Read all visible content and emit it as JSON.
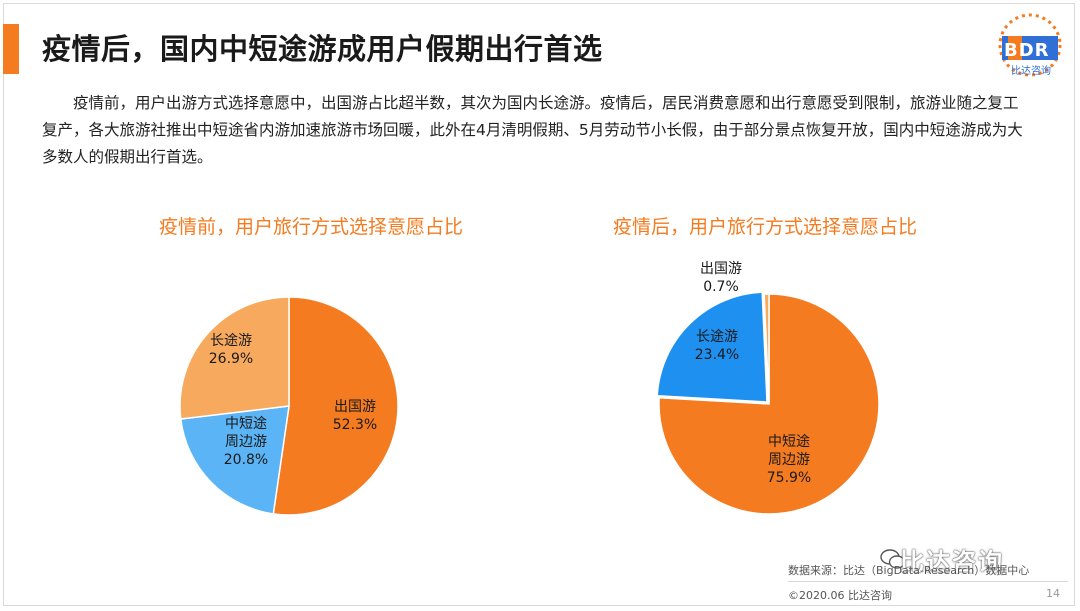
{
  "header": {
    "title": "疫情后，国内中短途游成用户假期出行首选",
    "logo_text": "BDR",
    "logo_subtitle": "比达咨询"
  },
  "intro": {
    "text": "疫情前，用户出游方式选择意愿中，出国游占比超半数，其次为国内长途游。疫情后，居民消费意愿和出行意愿受到限制，旅游业随之复工复产，各大旅游社推出中短途省内游加速旅游市场回暖，此外在4月清明假期、5月劳动节小长假，由于部分景点恢复开放，国内中短途游成为大多数人的假期出行首选。"
  },
  "chart_data": [
    {
      "type": "pie",
      "title": "疫情前，用户旅行方式选择意愿占比",
      "slices": [
        {
          "label": "出国游",
          "value": 52.3,
          "value_text": "52.3%",
          "color": "#f47b20"
        },
        {
          "label": "中短途\n周边游",
          "value": 20.8,
          "value_text": "20.8%",
          "color": "#5ab4f5"
        },
        {
          "label": "长途游",
          "value": 26.9,
          "value_text": "26.9%",
          "color": "#f7a95e"
        }
      ]
    },
    {
      "type": "pie",
      "title": "疫情后，用户旅行方式选择意愿占比",
      "slices": [
        {
          "label": "中短途\n周边游",
          "value": 75.9,
          "value_text": "75.9%",
          "color": "#f47b20"
        },
        {
          "label": "长途游",
          "value": 23.4,
          "value_text": "23.4%",
          "color": "#1e90f0"
        },
        {
          "label": "出国游",
          "value": 0.7,
          "value_text": "0.7%",
          "color": "#f7a95e"
        }
      ]
    }
  ],
  "footer": {
    "source": "数据来源：比达（BigData-Research）数据中心",
    "copyright": "©2020.06  比达咨询",
    "page": "14",
    "watermark": "比达咨询"
  },
  "colors": {
    "accent": "#f47b20",
    "blue": "#5ab4f5"
  }
}
